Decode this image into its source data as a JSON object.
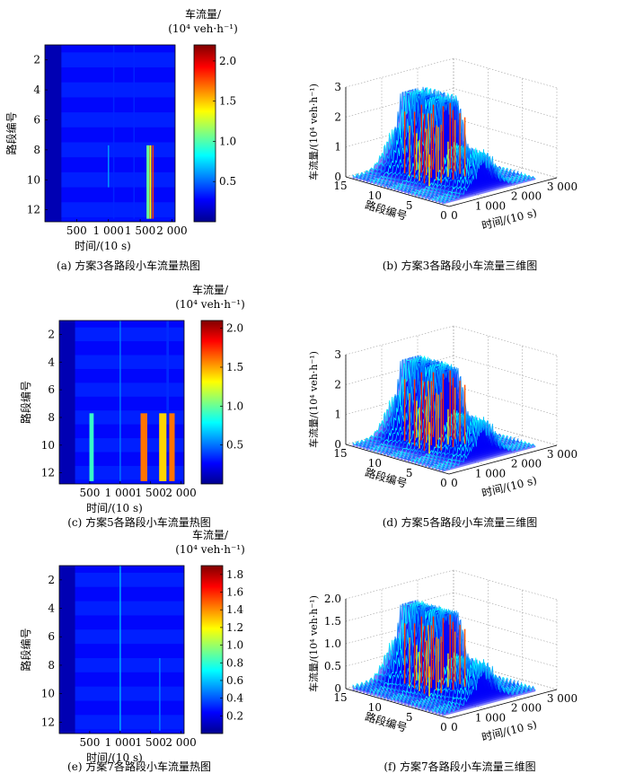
{
  "chart_data": [
    {
      "id": "a",
      "type": "heatmap",
      "caption": "(a) 方案3各路段小车流量热图",
      "xlabel": "时间/(10 s)",
      "ylabel": "路段编号",
      "xticks": [
        500,
        1000,
        1500,
        2000
      ],
      "yticks": [
        2,
        4,
        6,
        8,
        10,
        12
      ],
      "xlim": [
        0,
        2050
      ],
      "ylim": [
        1,
        12.8
      ],
      "colorbar": {
        "title_line1": "车流量/",
        "title_line2": "(10⁴ veh·h⁻¹)",
        "min": 0.0,
        "max": 2.2,
        "ticks": [
          0.5,
          1.0,
          1.5,
          2.0
        ]
      },
      "features": [
        {
          "x": 1620,
          "y0": 7.7,
          "y1": 12.6,
          "w": 40,
          "v": 1.05
        },
        {
          "x": 1660,
          "y0": 7.7,
          "y1": 12.6,
          "w": 30,
          "v": 1.4
        },
        {
          "x": 1700,
          "y0": 7.7,
          "y1": 12.6,
          "w": 20,
          "v": 1.8
        },
        {
          "x": 1000,
          "y0": 7.7,
          "y1": 10.5,
          "w": 20,
          "v": 0.6
        },
        {
          "x": 1080,
          "y0": 1.0,
          "y1": 12.6,
          "w": 15,
          "v": 0.35
        },
        {
          "x": 1400,
          "y0": 1.0,
          "y1": 12.6,
          "w": 15,
          "v": 0.35
        }
      ]
    },
    {
      "id": "b",
      "type": "surface3d",
      "caption": "(b) 方案3各路段小车流量三维图",
      "xlabel": "时间/(10 s)",
      "ylabel": "路段编号",
      "zlabel": "车流量/(10⁴ veh·h⁻¹)",
      "xticks": [
        "0",
        "1 000",
        "2 000",
        "3 000"
      ],
      "yticks": [
        "0",
        "5",
        "10",
        "15"
      ],
      "zticks": [
        "0",
        "1",
        "2",
        "3"
      ]
    },
    {
      "id": "c",
      "type": "heatmap",
      "caption": "(c) 方案5各路段小车流量热图",
      "xlabel": "时间/(10 s)",
      "ylabel": "路段编号",
      "xticks": [
        500,
        1000,
        1500,
        2000
      ],
      "yticks": [
        2,
        4,
        6,
        8,
        10,
        12
      ],
      "xlim": [
        0,
        2050
      ],
      "ylim": [
        1,
        12.8
      ],
      "colorbar": {
        "title_line1": "车流量/",
        "title_line2": "(10⁴ veh·h⁻¹)",
        "min": 0.0,
        "max": 2.1,
        "ticks": [
          0.5,
          1.0,
          1.5,
          2.0
        ]
      },
      "features": [
        {
          "x": 530,
          "y0": 7.7,
          "y1": 12.6,
          "w": 70,
          "v": 0.9
        },
        {
          "x": 1000,
          "y0": 1.0,
          "y1": 12.6,
          "w": 20,
          "v": 0.5
        },
        {
          "x": 1390,
          "y0": 7.7,
          "y1": 12.6,
          "w": 110,
          "v": 1.6
        },
        {
          "x": 1700,
          "y0": 7.7,
          "y1": 12.6,
          "w": 120,
          "v": 1.4
        },
        {
          "x": 1850,
          "y0": 7.7,
          "y1": 12.6,
          "w": 90,
          "v": 1.6
        },
        {
          "x": 1780,
          "y0": 1.0,
          "y1": 7.6,
          "w": 40,
          "v": 0.35
        }
      ]
    },
    {
      "id": "d",
      "type": "surface3d",
      "caption": "(d) 方案5各路段小车流量三维图",
      "xlabel": "时间/(10 s)",
      "ylabel": "路段编号",
      "zlabel": "车流量/(10⁴ veh·h⁻¹)",
      "xticks": [
        "0",
        "1 000",
        "2 000",
        "3 000"
      ],
      "yticks": [
        "0",
        "5",
        "10",
        "15"
      ],
      "zticks": [
        "0",
        "1",
        "2",
        "3"
      ]
    },
    {
      "id": "e",
      "type": "heatmap",
      "caption": "(e) 方案7各路段小车流量热图",
      "xlabel": "时间/(10 s)",
      "ylabel": "路段编号",
      "xticks": [
        500,
        1000,
        1500,
        2000
      ],
      "yticks": [
        2,
        4,
        6,
        8,
        10,
        12
      ],
      "xlim": [
        0,
        2050
      ],
      "ylim": [
        1,
        12.8
      ],
      "colorbar": {
        "title_line1": "车流量/",
        "title_line2": "(10⁴ veh·h⁻¹)",
        "min": 0.0,
        "max": 1.9,
        "ticks": [
          0.2,
          0.4,
          0.6,
          0.8,
          1.0,
          1.2,
          1.4,
          1.6,
          1.8
        ]
      },
      "features": [
        {
          "x": 1000,
          "y0": 1.0,
          "y1": 12.6,
          "w": 20,
          "v": 0.55
        },
        {
          "x": 1650,
          "y0": 7.5,
          "y1": 12.6,
          "w": 25,
          "v": 0.45
        }
      ]
    },
    {
      "id": "f",
      "type": "surface3d",
      "caption": "(f) 方案7各路段小车流量三维图",
      "xlabel": "时间/(10 s)",
      "ylabel": "路段编号",
      "zlabel": "车流量/(10⁴ veh·h⁻¹)",
      "xticks": [
        "0",
        "1 000",
        "2 000",
        "3 000"
      ],
      "yticks": [
        "0",
        "5",
        "10",
        "15"
      ],
      "zticks": [
        "0",
        "0.5",
        "1.0",
        "1.5",
        "2.0"
      ]
    }
  ]
}
